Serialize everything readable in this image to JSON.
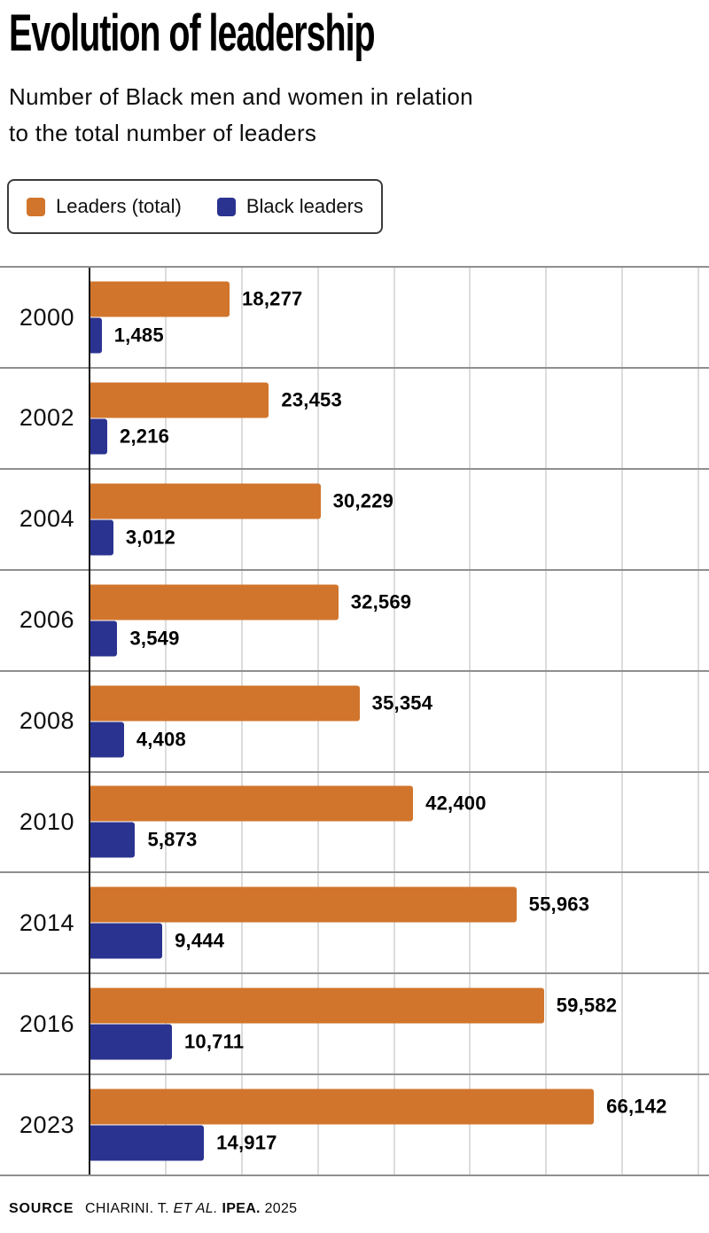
{
  "title": "Evolution of leadership",
  "subtitle_line1": "Number of Black men and women in relation",
  "subtitle_line2": "to the total number of leaders",
  "legend": {
    "items": [
      {
        "label": "Leaders (total)",
        "color": "#d1752c"
      },
      {
        "label": "Black leaders",
        "color": "#2b3390"
      }
    ]
  },
  "source": {
    "label": "SOURCE",
    "authors": "CHIARINI. T.",
    "et_al": "ET AL.",
    "org": "IPEA.",
    "year": "2025"
  },
  "chart_data": {
    "type": "bar",
    "orientation": "horizontal",
    "title": "Evolution of leadership",
    "subtitle": "Number of Black men and women in relation to the total number of leaders",
    "categories": [
      "2000",
      "2002",
      "2004",
      "2006",
      "2008",
      "2010",
      "2014",
      "2016",
      "2023"
    ],
    "series": [
      {
        "name": "Leaders (total)",
        "color": "#d1752c",
        "values": [
          18277,
          23453,
          30229,
          32569,
          35354,
          42400,
          55963,
          59582,
          66142
        ],
        "labels": [
          "18,277",
          "23,453",
          "30,229",
          "32,569",
          "35,354",
          "42,400",
          "55,963",
          "59,582",
          "66,142"
        ]
      },
      {
        "name": "Black leaders",
        "color": "#2b3390",
        "values": [
          1485,
          2216,
          3012,
          3549,
          4408,
          5873,
          9444,
          10711,
          14917
        ],
        "labels": [
          "1,485",
          "2,216",
          "3,012",
          "3,549",
          "4,408",
          "5,873",
          "9,444",
          "10,711",
          "14,917"
        ]
      }
    ],
    "xlim": [
      0,
      81500
    ],
    "gridline_interval": 10000,
    "grid": true,
    "legend_position": "top",
    "value_labels": true
  }
}
